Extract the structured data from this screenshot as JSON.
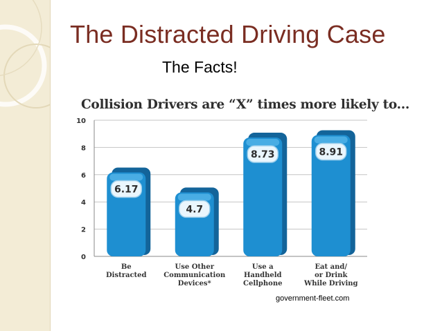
{
  "slide": {
    "title": "The Distracted Driving Case",
    "subtitle": "The Facts!",
    "source": "government-fleet.com"
  },
  "colors": {
    "title": "#7a2d22",
    "bar_front": "#1e8fd1",
    "bar_top": "#58b7ea",
    "bar_side": "#13649a",
    "side_band": "#f3ecd6"
  },
  "chart_data": {
    "type": "bar",
    "title": "Collision Drivers are “X” times more likely to...",
    "categories": [
      [
        "Be",
        "Distracted"
      ],
      [
        "Use Other",
        "Communication",
        "Devices*"
      ],
      [
        "Use a",
        "Handheld",
        "Cellphone"
      ],
      [
        "Eat and/",
        "or Drink",
        "While Driving"
      ]
    ],
    "values": [
      6.17,
      4.7,
      8.73,
      8.91
    ],
    "value_labels": [
      "6.17",
      "4.7",
      "8.73",
      "8.91"
    ],
    "ylim": [
      0,
      10
    ],
    "yticks": [
      0,
      2,
      4,
      6,
      8,
      10
    ],
    "grid": true,
    "xlabel": "",
    "ylabel": ""
  }
}
